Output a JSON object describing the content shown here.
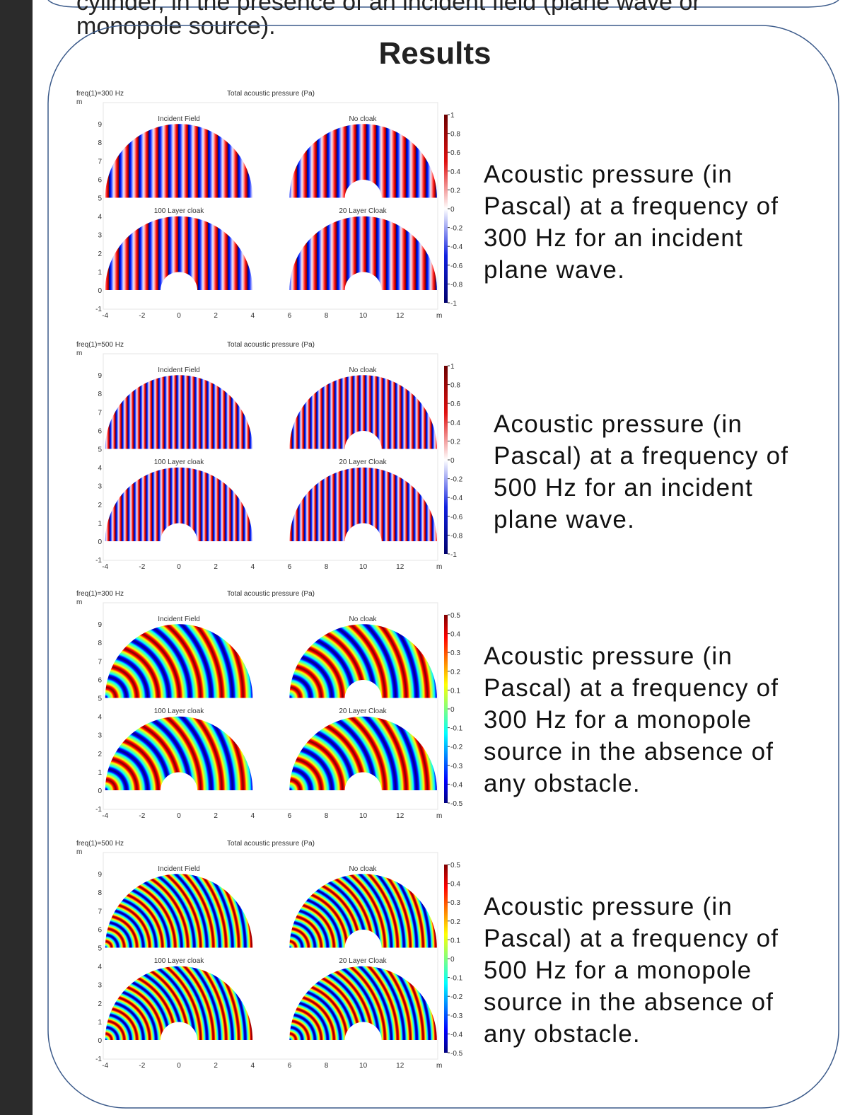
{
  "header": {
    "cut_line": "cylinder, in the presence of an incident field (plane wave or",
    "line": "monopole source)."
  },
  "title": "Results",
  "panels": [
    {
      "freq_label": "freq(1)=300 Hz",
      "y_unit": "m",
      "plot_title": "Total acoustic pressure (Pa)",
      "x_unit": "m",
      "subplots": [
        "Incident Field",
        "No cloak",
        "100 Layer cloak",
        "20 Layer Cloak"
      ],
      "yticks": [
        9,
        8,
        7,
        6,
        5,
        4,
        3,
        2,
        1,
        0,
        -1
      ],
      "xticks": [
        -4,
        -2,
        0,
        2,
        4,
        6,
        8,
        10,
        12
      ],
      "colorbar_ticks": [
        1,
        0.8,
        0.6,
        0.4,
        0.2,
        0,
        -0.2,
        -0.4,
        -0.6,
        -0.8,
        -1
      ],
      "description_lines": [
        "Acoustic pressure (in",
        "Pascal) at a frequency of",
        "300 Hz for an incident",
        "plane wave."
      ]
    },
    {
      "freq_label": "freq(1)=500 Hz",
      "y_unit": "m",
      "plot_title": "Total acoustic pressure (Pa)",
      "x_unit": "m",
      "subplots": [
        "Incident Field",
        "No cloak",
        "100 Layer cloak",
        "20 Layer Cloak"
      ],
      "yticks": [
        9,
        8,
        7,
        6,
        5,
        4,
        3,
        2,
        1,
        0,
        -1
      ],
      "xticks": [
        -4,
        -2,
        0,
        2,
        4,
        6,
        8,
        10,
        12
      ],
      "colorbar_ticks": [
        1,
        0.8,
        0.6,
        0.4,
        0.2,
        0,
        -0.2,
        -0.4,
        -0.6,
        -0.8,
        -1
      ],
      "description_lines": [
        "Acoustic pressure (in",
        "Pascal) at a frequency of",
        "500 Hz for an incident",
        "plane wave."
      ]
    },
    {
      "freq_label": "freq(1)=300 Hz",
      "y_unit": "m",
      "plot_title": "Total acoustic pressure (Pa)",
      "x_unit": "m",
      "subplots": [
        "Incident Field",
        "No cloak",
        "100 Layer cloak",
        "20 Layer Cloak"
      ],
      "yticks": [
        9,
        8,
        7,
        6,
        5,
        4,
        3,
        2,
        1,
        0,
        -1
      ],
      "xticks": [
        -4,
        -2,
        0,
        2,
        4,
        6,
        8,
        10,
        12
      ],
      "colorbar_ticks": [
        0.5,
        0.4,
        0.3,
        0.2,
        0.1,
        0,
        -0.1,
        -0.2,
        -0.3,
        -0.4,
        -0.5
      ],
      "description_lines": [
        "Acoustic pressure (in",
        "Pascal) at a frequency of",
        "300 Hz for a monopole",
        "source in the absence of",
        "any obstacle."
      ]
    },
    {
      "freq_label": "freq(1)=500 Hz",
      "y_unit": "m",
      "plot_title": "Total acoustic pressure (Pa)",
      "x_unit": "m",
      "subplots": [
        "Incident Field",
        "No cloak",
        "100 Layer cloak",
        "20 Layer Cloak"
      ],
      "yticks": [
        9,
        8,
        7,
        6,
        5,
        4,
        3,
        2,
        1,
        0,
        -1
      ],
      "xticks": [
        -4,
        -2,
        0,
        2,
        4,
        6,
        8,
        10,
        12
      ],
      "colorbar_ticks": [
        0.5,
        0.4,
        0.3,
        0.2,
        0.1,
        0,
        -0.1,
        -0.2,
        -0.3,
        -0.4,
        -0.5
      ],
      "description_lines": [
        "Acoustic pressure (in",
        "Pascal) at a frequency of",
        "500 Hz for a monopole",
        "source in the absence of",
        "any obstacle."
      ]
    }
  ]
}
